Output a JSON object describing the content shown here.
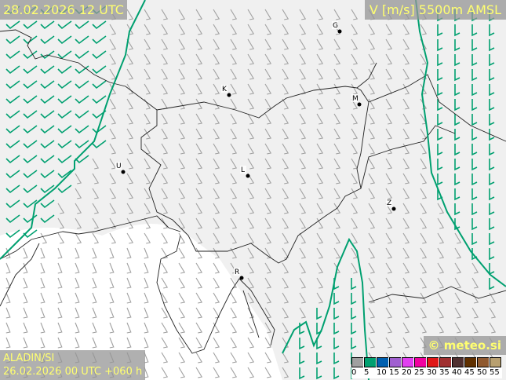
{
  "header": {
    "valid_time": "28.02.2026 12 UTC",
    "parameter": "V [m/s] 5500m AMSL"
  },
  "footer": {
    "model": "ALADIN/SI",
    "run": "26.02.2026 00 UTC +060 h",
    "brand": "© meteo.si"
  },
  "legend": {
    "unit": "m/s",
    "values": [
      "0",
      "5",
      "10",
      "15",
      "20",
      "25",
      "30",
      "35",
      "40",
      "45",
      "50",
      "55"
    ],
    "colors": [
      "#a0a0a0",
      "#00a070",
      "#0060b0",
      "#a060d0",
      "#e040f0",
      "#f000a0",
      "#e01818",
      "#a03030",
      "#503030",
      "#603000",
      "#905a30",
      "#b8a070"
    ]
  },
  "cities": [
    {
      "label": "G"
    },
    {
      "label": "K"
    },
    {
      "label": "M"
    },
    {
      "label": "U"
    },
    {
      "label": "L"
    },
    {
      "label": "Z"
    },
    {
      "label": "R"
    }
  ],
  "colors": {
    "barb_low": "#a0a0a0",
    "barb_5": "#00a070",
    "contour": "#00a070",
    "border": "#222222"
  }
}
